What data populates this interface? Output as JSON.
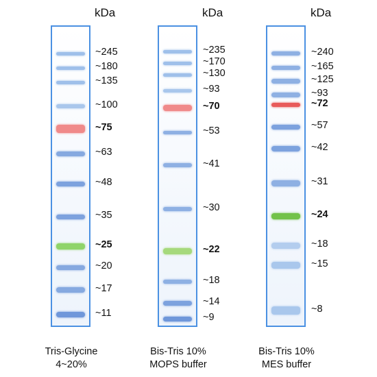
{
  "unit_label": "kDa",
  "ladders": [
    {
      "caption_line1": "Tris-Glycine",
      "caption_line2": "4~20%",
      "markers": [
        {
          "label": "~245",
          "bold": false,
          "color": "#9fc0ea"
        },
        {
          "label": "~180",
          "bold": false,
          "color": "#9fc0ea"
        },
        {
          "label": "~135",
          "bold": false,
          "color": "#9fc0ea"
        },
        {
          "label": "~100",
          "bold": false,
          "color": "#a9c7ec"
        },
        {
          "label": "~75",
          "bold": true,
          "color": "#f08a8a"
        },
        {
          "label": "~63",
          "bold": false,
          "color": "#86a9e0"
        },
        {
          "label": "~48",
          "bold": false,
          "color": "#7da2de"
        },
        {
          "label": "~35",
          "bold": false,
          "color": "#7da2de"
        },
        {
          "label": "~25",
          "bold": true,
          "color": "#8fd46a"
        },
        {
          "label": "~20",
          "bold": false,
          "color": "#86a9e0"
        },
        {
          "label": "~17",
          "bold": false,
          "color": "#86a9e0"
        },
        {
          "label": "~11",
          "bold": false,
          "color": "#6f97da"
        }
      ]
    },
    {
      "caption_line1": "Bis-Tris 10%",
      "caption_line2": "MOPS buffer",
      "markers": [
        {
          "label": "~235",
          "bold": false,
          "color": "#9fc0ea"
        },
        {
          "label": "~170",
          "bold": false,
          "color": "#9fc0ea"
        },
        {
          "label": "~130",
          "bold": false,
          "color": "#9fc0ea"
        },
        {
          "label": "~93",
          "bold": false,
          "color": "#a9c7ec"
        },
        {
          "label": "~70",
          "bold": true,
          "color": "#f08a8a"
        },
        {
          "label": "~53",
          "bold": false,
          "color": "#8eb0e3"
        },
        {
          "label": "~41",
          "bold": false,
          "color": "#8eb0e3"
        },
        {
          "label": "~30",
          "bold": false,
          "color": "#8eb0e3"
        },
        {
          "label": "~22",
          "bold": true,
          "color": "#a6d97c"
        },
        {
          "label": "~18",
          "bold": false,
          "color": "#8eb0e3"
        },
        {
          "label": "~14",
          "bold": false,
          "color": "#7da2de"
        },
        {
          "label": "~9",
          "bold": false,
          "color": "#6f97da"
        }
      ]
    },
    {
      "caption_line1": "Bis-Tris 10%",
      "caption_line2": "MES buffer",
      "markers": [
        {
          "label": "~240",
          "bold": false,
          "color": "#8eb0e3"
        },
        {
          "label": "~165",
          "bold": false,
          "color": "#8eb0e3"
        },
        {
          "label": "~125",
          "bold": false,
          "color": "#8eb0e3"
        },
        {
          "label": "~93",
          "bold": false,
          "color": "#8eb0e3"
        },
        {
          "label": "~72",
          "bold": true,
          "color": "#e85a5a"
        },
        {
          "label": "~57",
          "bold": false,
          "color": "#7da2de"
        },
        {
          "label": "~42",
          "bold": false,
          "color": "#7da2de"
        },
        {
          "label": "~31",
          "bold": false,
          "color": "#8eb0e3"
        },
        {
          "label": "~24",
          "bold": true,
          "color": "#72c24a"
        },
        {
          "label": "~18",
          "bold": false,
          "color": "#b3cdee"
        },
        {
          "label": "~15",
          "bold": false,
          "color": "#a9c7ec"
        },
        {
          "label": "~8",
          "bold": false,
          "color": "#a9c7ec"
        }
      ]
    }
  ]
}
